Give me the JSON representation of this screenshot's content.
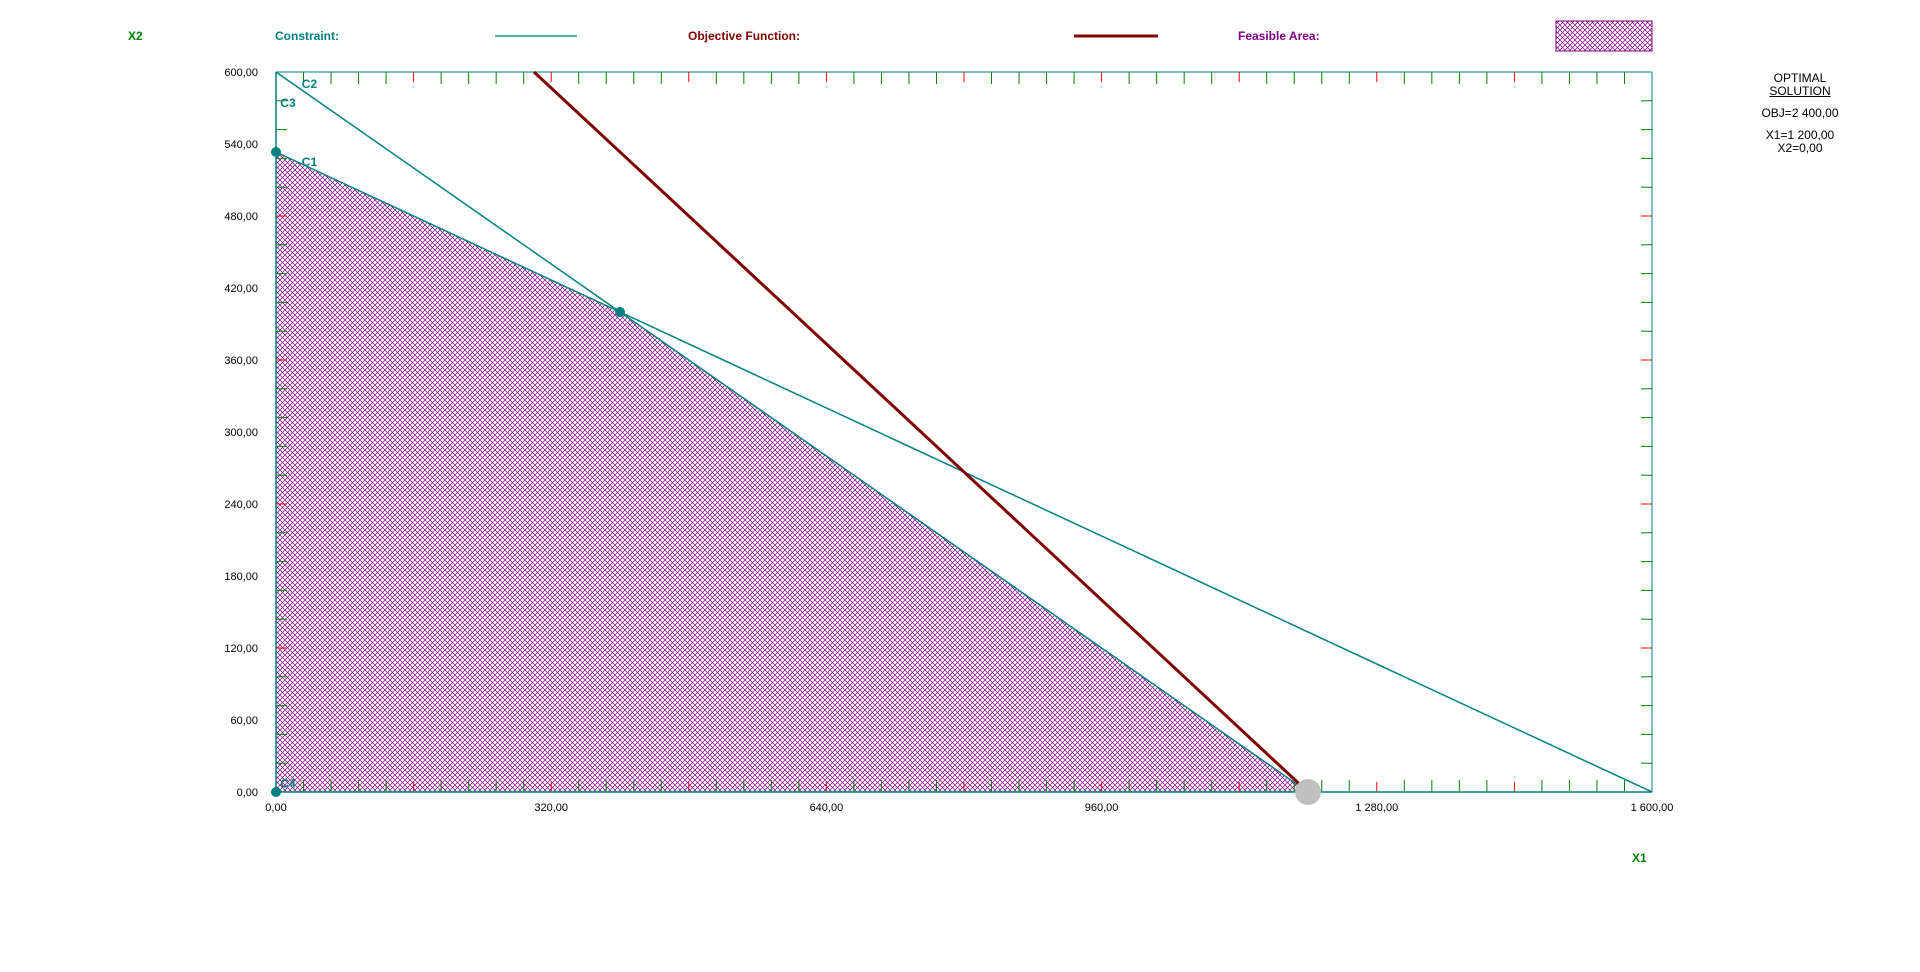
{
  "legend": {
    "constraint_label": "Constraint:",
    "objective_label": "Objective Function:",
    "feasible_label": "Feasible Area:"
  },
  "solution": {
    "title_line1": "OPTIMAL",
    "title_line2": "SOLUTION",
    "obj": "OBJ=2 400,00",
    "x1": "X1=1 200,00",
    "x2": "X2=0,00"
  },
  "colors": {
    "constraint": "#008080",
    "objective": "#800000",
    "feasible": "#800080",
    "axis_title": "#008000",
    "tick_red": "#ff0000",
    "tick_green": "#008000",
    "optimal_marker": "#c0c0c0"
  },
  "chart_data": {
    "type": "line",
    "subtype": "linear-programming-graphical",
    "xlabel": "X1",
    "ylabel": "X2",
    "xlim": [
      0,
      1600
    ],
    "ylim": [
      0,
      600
    ],
    "x_tick_labels": [
      "0,00",
      "320,00",
      "640,00",
      "960,00",
      "1 280,00",
      "1 600,00"
    ],
    "x_tick_values": [
      0,
      320,
      640,
      960,
      1280,
      1600
    ],
    "y_tick_labels": [
      "0,00",
      "60,00",
      "120,00",
      "180,00",
      "240,00",
      "300,00",
      "360,00",
      "420,00",
      "480,00",
      "540,00",
      "600,00"
    ],
    "y_tick_values": [
      0,
      60,
      120,
      180,
      240,
      300,
      360,
      420,
      480,
      540,
      600
    ],
    "constraints": [
      {
        "name": "C1",
        "points": [
          [
            0,
            533.33
          ],
          [
            1600,
            0
          ]
        ],
        "label_at": [
          30,
          525
        ]
      },
      {
        "name": "C2",
        "points": [
          [
            0,
            600
          ],
          [
            1200,
            0
          ]
        ],
        "label_at": [
          30,
          590
        ]
      },
      {
        "name": "C3",
        "points": [
          [
            0,
            0
          ],
          [
            0,
            600
          ]
        ],
        "label_at": [
          5,
          574
        ]
      },
      {
        "name": "C4",
        "points": [
          [
            0,
            0
          ],
          [
            1600,
            0
          ]
        ],
        "label_at": [
          5,
          7
        ]
      }
    ],
    "objective": {
      "points": [
        [
          300,
          600
        ],
        [
          1200,
          0
        ]
      ]
    },
    "feasible_region": [
      [
        0,
        0
      ],
      [
        0,
        533.33
      ],
      [
        400,
        400
      ],
      [
        1200,
        0
      ]
    ],
    "vertices": [
      [
        0,
        0
      ],
      [
        0,
        533.33
      ],
      [
        400,
        400
      ]
    ],
    "optimal_point": [
      1200,
      0
    ]
  }
}
